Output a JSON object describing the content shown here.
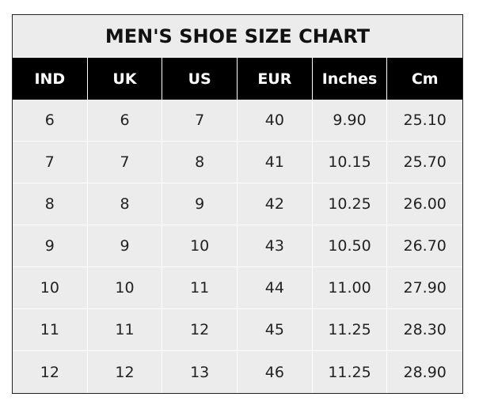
{
  "title": "MEN'S SHOE SIZE CHART",
  "headers": [
    "IND",
    "UK",
    "US",
    "EUR",
    "Inches",
    "Cm"
  ],
  "rows": [
    [
      "6",
      "6",
      "7",
      "40",
      "9.90",
      "25.10"
    ],
    [
      "7",
      "7",
      "8",
      "41",
      "10.15",
      "25.70"
    ],
    [
      "8",
      "8",
      "9",
      "42",
      "10.25",
      "26.00"
    ],
    [
      "9",
      "9",
      "10",
      "43",
      "10.50",
      "26.70"
    ],
    [
      "10",
      "10",
      "11",
      "44",
      "11.00",
      "27.90"
    ],
    [
      "11",
      "11",
      "12",
      "45",
      "11.25",
      "28.30"
    ],
    [
      "12",
      "12",
      "13",
      "46",
      "11.25",
      "28.90"
    ]
  ],
  "colors": {
    "header_bg": "#000000",
    "cell_bg": "#ececec",
    "grid": "#ffffff"
  }
}
